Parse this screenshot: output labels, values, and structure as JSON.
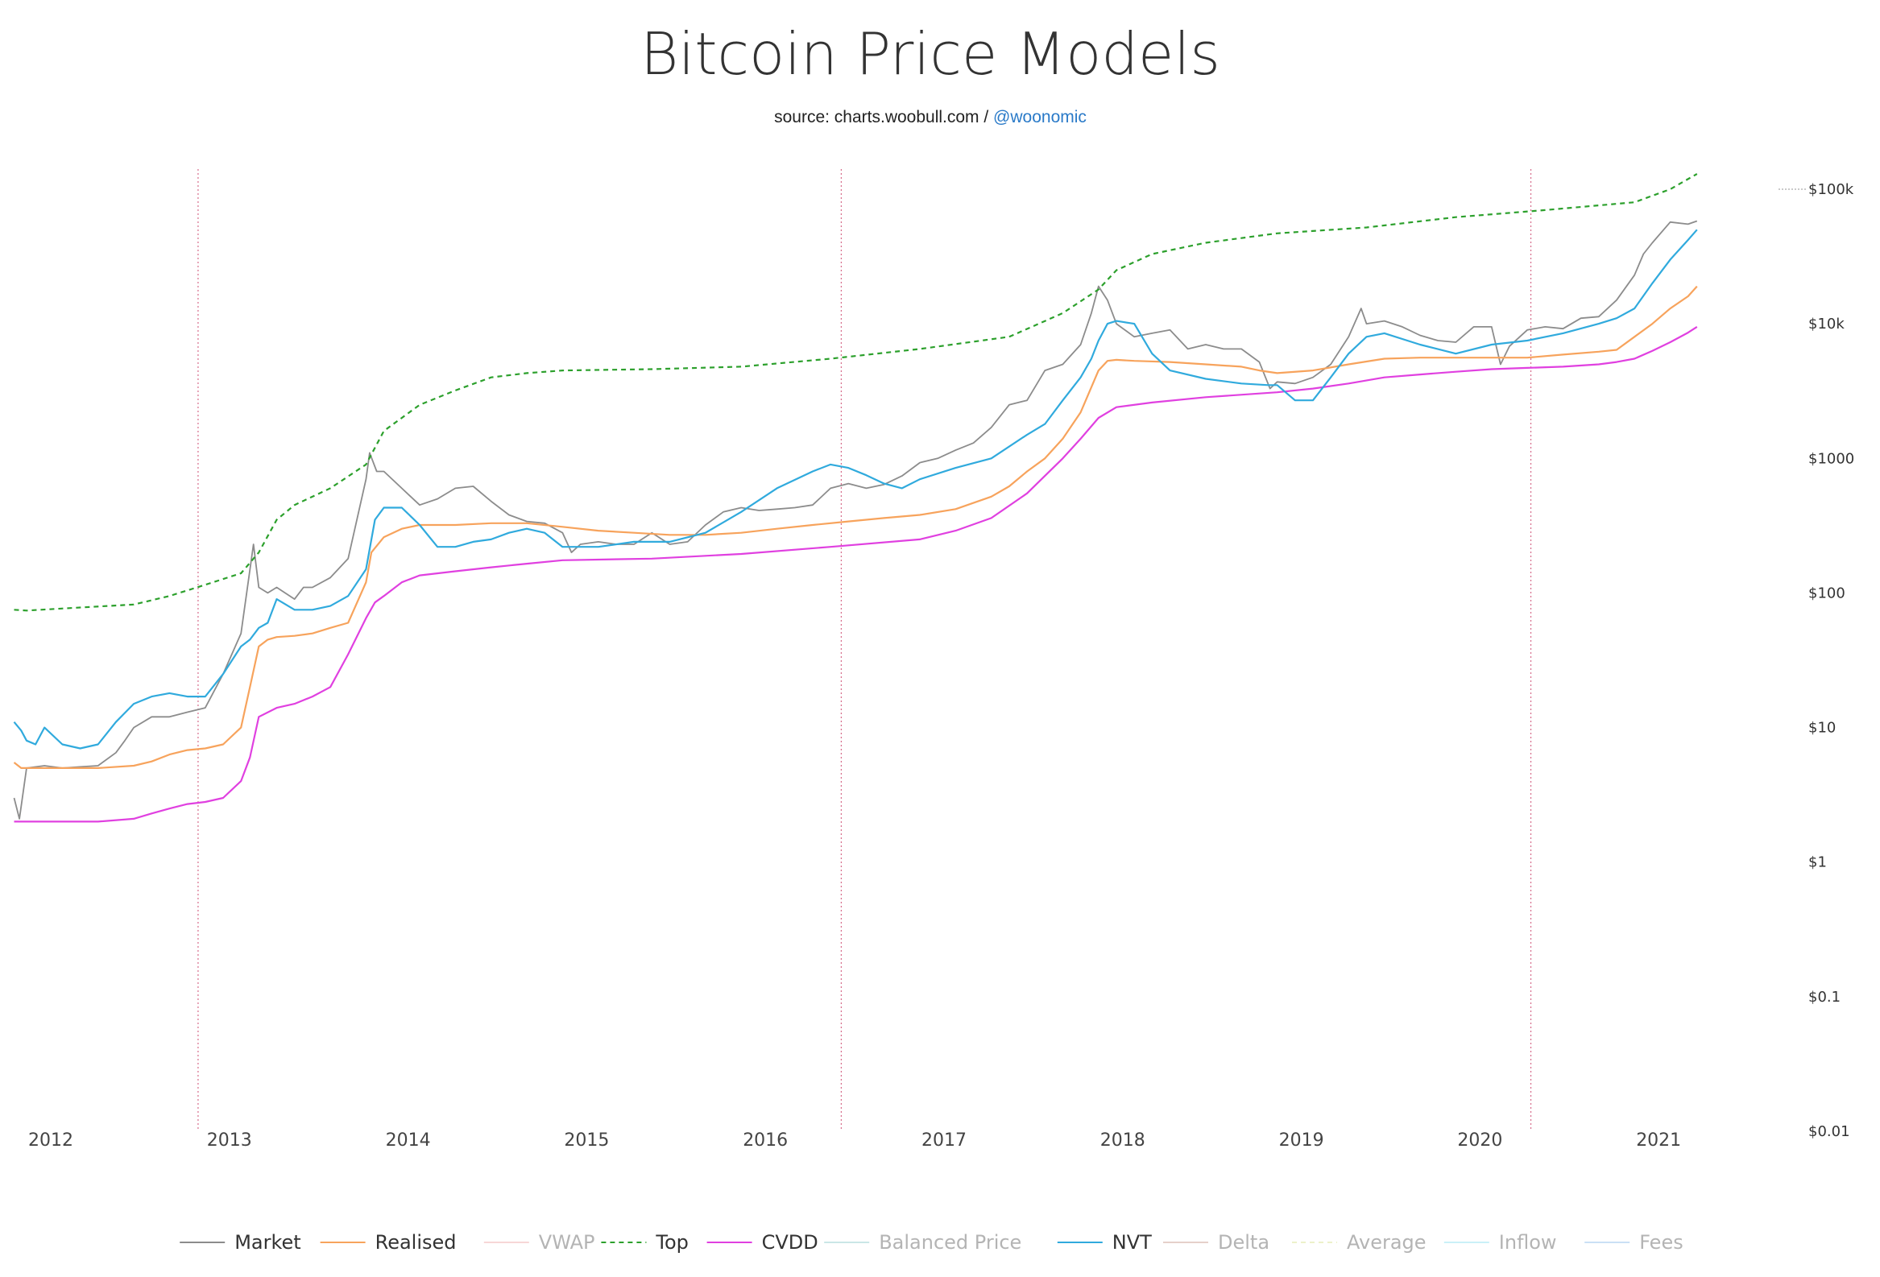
{
  "title": "Bitcoin Price Models",
  "subtitle": {
    "source": "source: charts.woobull.com / ",
    "handle": "@woonomic"
  },
  "chart_data": {
    "type": "line",
    "title": "Bitcoin Price Models",
    "yscale": "log",
    "ylim": [
      0.01,
      100000
    ],
    "xlim": [
      2011.92,
      2021.45
    ],
    "x_tick_labels": [
      "2012",
      "2013",
      "2014",
      "2015",
      "2016",
      "2017",
      "2018",
      "2019",
      "2020",
      "2021"
    ],
    "x_tick_values": [
      2012,
      2013,
      2014,
      2015,
      2016,
      2017,
      2018,
      2019,
      2020,
      2021
    ],
    "y_tick_labels": [
      "$0.01",
      "$0.1",
      "$1",
      "$10",
      "$100",
      "$1000",
      "$10k",
      "$100k"
    ],
    "y_tick_values": [
      0.01,
      0.1,
      1,
      10,
      100,
      1000,
      10000,
      100000
    ],
    "halving_lines": [
      2012.96,
      2016.56,
      2020.42
    ],
    "series": [
      {
        "name": "Market",
        "color": "#8c8c8c",
        "style": "solid",
        "visible": true,
        "x": [
          2011.93,
          2011.96,
          2012.0,
          2012.1,
          2012.2,
          2012.3,
          2012.4,
          2012.5,
          2012.55,
          2012.6,
          2012.7,
          2012.8,
          2012.9,
          2013.0,
          2013.1,
          2013.2,
          2013.27,
          2013.3,
          2013.35,
          2013.4,
          2013.5,
          2013.55,
          2013.6,
          2013.7,
          2013.8,
          2013.9,
          2013.92,
          2013.96,
          2014.0,
          2014.1,
          2014.2,
          2014.3,
          2014.4,
          2014.5,
          2014.6,
          2014.7,
          2014.8,
          2014.9,
          2015.0,
          2015.05,
          2015.1,
          2015.2,
          2015.3,
          2015.4,
          2015.5,
          2015.6,
          2015.7,
          2015.8,
          2015.9,
          2016.0,
          2016.1,
          2016.2,
          2016.3,
          2016.4,
          2016.5,
          2016.6,
          2016.7,
          2016.8,
          2016.9,
          2017.0,
          2017.1,
          2017.2,
          2017.3,
          2017.4,
          2017.5,
          2017.6,
          2017.7,
          2017.8,
          2017.9,
          2017.96,
          2018.0,
          2018.05,
          2018.1,
          2018.2,
          2018.3,
          2018.4,
          2018.5,
          2018.6,
          2018.7,
          2018.8,
          2018.9,
          2018.96,
          2019.0,
          2019.1,
          2019.2,
          2019.3,
          2019.4,
          2019.47,
          2019.5,
          2019.6,
          2019.7,
          2019.8,
          2019.9,
          2020.0,
          2020.1,
          2020.2,
          2020.25,
          2020.3,
          2020.4,
          2020.5,
          2020.6,
          2020.7,
          2020.8,
          2020.9,
          2021.0,
          2021.05,
          2021.1,
          2021.2,
          2021.3,
          2021.35
        ],
        "y": [
          3,
          2.1,
          5,
          5.2,
          5,
          5.1,
          5.2,
          6.5,
          8,
          10,
          12,
          12,
          13,
          14,
          25,
          50,
          230,
          110,
          100,
          110,
          90,
          110,
          110,
          130,
          180,
          700,
          1100,
          800,
          800,
          600,
          450,
          500,
          600,
          620,
          480,
          380,
          340,
          330,
          280,
          200,
          230,
          240,
          230,
          230,
          280,
          230,
          240,
          320,
          400,
          430,
          410,
          420,
          430,
          450,
          600,
          650,
          600,
          640,
          740,
          930,
          1000,
          1150,
          1300,
          1700,
          2500,
          2700,
          4500,
          5000,
          7000,
          12000,
          19000,
          15000,
          10000,
          8000,
          8500,
          9000,
          6500,
          7000,
          6500,
          6500,
          5200,
          3300,
          3700,
          3600,
          4000,
          5000,
          8000,
          13000,
          10000,
          10500,
          9500,
          8200,
          7500,
          7300,
          9500,
          9500,
          5000,
          6800,
          9000,
          9500,
          9200,
          11000,
          11300,
          15000,
          23000,
          33000,
          40000,
          57000,
          55000,
          58000
        ]
      },
      {
        "name": "Realised",
        "color": "#f7a35c",
        "style": "solid",
        "visible": true,
        "x": [
          2011.93,
          2011.97,
          2012.0,
          2012.2,
          2012.4,
          2012.6,
          2012.7,
          2012.8,
          2012.9,
          2013.0,
          2013.1,
          2013.2,
          2013.25,
          2013.3,
          2013.35,
          2013.4,
          2013.5,
          2013.6,
          2013.7,
          2013.8,
          2013.9,
          2013.93,
          2014.0,
          2014.1,
          2014.2,
          2014.4,
          2014.6,
          2014.8,
          2015.0,
          2015.2,
          2015.4,
          2015.6,
          2015.8,
          2016.0,
          2016.2,
          2016.4,
          2016.6,
          2016.8,
          2017.0,
          2017.2,
          2017.4,
          2017.5,
          2017.6,
          2017.7,
          2017.8,
          2017.9,
          2018.0,
          2018.05,
          2018.1,
          2018.2,
          2018.4,
          2018.6,
          2018.8,
          2018.9,
          2019.0,
          2019.2,
          2019.4,
          2019.6,
          2019.8,
          2020.0,
          2020.2,
          2020.4,
          2020.6,
          2020.8,
          2020.9,
          2021.0,
          2021.1,
          2021.2,
          2021.3,
          2021.35
        ],
        "y": [
          5.5,
          5,
          5,
          5,
          5,
          5.2,
          5.6,
          6.3,
          6.8,
          7,
          7.5,
          10,
          20,
          40,
          45,
          47,
          48,
          50,
          55,
          60,
          120,
          200,
          260,
          300,
          320,
          320,
          330,
          330,
          310,
          290,
          280,
          270,
          270,
          280,
          300,
          320,
          340,
          360,
          380,
          420,
          520,
          620,
          800,
          1000,
          1400,
          2200,
          4500,
          5300,
          5400,
          5300,
          5200,
          5000,
          4800,
          4500,
          4300,
          4500,
          5000,
          5500,
          5600,
          5600,
          5600,
          5600,
          5900,
          6200,
          6400,
          8000,
          10000,
          13000,
          16000,
          19000
        ]
      },
      {
        "name": "Top",
        "color": "#2ca02c",
        "style": "dashed",
        "visible": true,
        "x": [
          2011.93,
          2012.0,
          2012.3,
          2012.6,
          2012.8,
          2013.0,
          2013.2,
          2013.3,
          2013.4,
          2013.5,
          2013.7,
          2013.9,
          2014.0,
          2014.2,
          2014.4,
          2014.6,
          2014.8,
          2015.0,
          2015.5,
          2016.0,
          2016.5,
          2017.0,
          2017.5,
          2017.8,
          2018.0,
          2018.1,
          2018.3,
          2018.6,
          2019.0,
          2019.5,
          2020.0,
          2020.5,
          2021.0,
          2021.2,
          2021.35
        ],
        "y": [
          75,
          74,
          78,
          82,
          95,
          115,
          140,
          200,
          350,
          450,
          600,
          900,
          1600,
          2500,
          3200,
          4000,
          4300,
          4500,
          4600,
          4800,
          5500,
          6500,
          8000,
          12000,
          18000,
          25000,
          33000,
          40000,
          47000,
          52000,
          62000,
          70000,
          80000,
          100000,
          130000
        ]
      },
      {
        "name": "CVDD",
        "color": "#e040e0",
        "style": "solid",
        "visible": true,
        "x": [
          2011.93,
          2012.0,
          2012.2,
          2012.4,
          2012.6,
          2012.7,
          2012.8,
          2012.9,
          2013.0,
          2013.1,
          2013.2,
          2013.25,
          2013.3,
          2013.4,
          2013.5,
          2013.6,
          2013.7,
          2013.8,
          2013.9,
          2013.95,
          2014.0,
          2014.1,
          2014.2,
          2014.4,
          2014.6,
          2014.8,
          2015.0,
          2015.5,
          2016.0,
          2016.5,
          2017.0,
          2017.2,
          2017.4,
          2017.6,
          2017.8,
          2017.9,
          2018.0,
          2018.1,
          2018.3,
          2018.6,
          2019.0,
          2019.2,
          2019.4,
          2019.6,
          2019.8,
          2020.0,
          2020.2,
          2020.4,
          2020.6,
          2020.8,
          2020.9,
          2021.0,
          2021.1,
          2021.2,
          2021.3,
          2021.35
        ],
        "y": [
          2,
          2,
          2,
          2,
          2.1,
          2.3,
          2.5,
          2.7,
          2.8,
          3,
          4,
          6,
          12,
          14,
          15,
          17,
          20,
          35,
          65,
          85,
          95,
          120,
          135,
          145,
          155,
          165,
          175,
          180,
          195,
          220,
          250,
          290,
          360,
          550,
          1000,
          1400,
          2000,
          2400,
          2600,
          2850,
          3100,
          3300,
          3600,
          4000,
          4200,
          4400,
          4600,
          4700,
          4800,
          5000,
          5200,
          5500,
          6300,
          7300,
          8600,
          9500
        ]
      },
      {
        "name": "NVT",
        "color": "#30aadd",
        "style": "solid",
        "visible": true,
        "x": [
          2011.93,
          2011.97,
          2012.0,
          2012.05,
          2012.1,
          2012.2,
          2012.3,
          2012.4,
          2012.5,
          2012.6,
          2012.7,
          2012.8,
          2012.9,
          2013.0,
          2013.1,
          2013.2,
          2013.25,
          2013.3,
          2013.35,
          2013.4,
          2013.5,
          2013.6,
          2013.7,
          2013.8,
          2013.9,
          2013.95,
          2014.0,
          2014.1,
          2014.2,
          2014.3,
          2014.4,
          2014.5,
          2014.6,
          2014.7,
          2014.8,
          2014.9,
          2015.0,
          2015.2,
          2015.4,
          2015.6,
          2015.8,
          2016.0,
          2016.2,
          2016.4,
          2016.5,
          2016.6,
          2016.7,
          2016.8,
          2016.9,
          2017.0,
          2017.2,
          2017.4,
          2017.6,
          2017.7,
          2017.8,
          2017.9,
          2017.96,
          2018.0,
          2018.05,
          2018.1,
          2018.2,
          2018.3,
          2018.4,
          2018.6,
          2018.8,
          2018.95,
          2019.0,
          2019.1,
          2019.2,
          2019.3,
          2019.4,
          2019.5,
          2019.6,
          2019.8,
          2020.0,
          2020.2,
          2020.4,
          2020.6,
          2020.8,
          2020.9,
          2021.0,
          2021.1,
          2021.2,
          2021.3,
          2021.35
        ],
        "y": [
          11,
          9.5,
          8,
          7.5,
          10,
          7.5,
          7,
          7.5,
          11,
          15,
          17,
          18,
          17,
          17,
          25,
          40,
          45,
          55,
          60,
          90,
          75,
          75,
          80,
          95,
          150,
          350,
          430,
          430,
          320,
          220,
          220,
          240,
          250,
          280,
          300,
          280,
          220,
          220,
          240,
          240,
          280,
          400,
          600,
          800,
          900,
          850,
          750,
          650,
          600,
          700,
          850,
          1000,
          1500,
          1800,
          2700,
          4000,
          5500,
          7500,
          10000,
          10500,
          10000,
          6000,
          4500,
          3900,
          3600,
          3500,
          3500,
          2700,
          2700,
          4000,
          6000,
          8000,
          8500,
          7000,
          6000,
          7000,
          7500,
          8500,
          10000,
          11000,
          13000,
          20000,
          30000,
          42000,
          50000
        ]
      }
    ],
    "legend": [
      {
        "name": "Market",
        "color": "#8c8c8c",
        "style": "solid",
        "visible": true
      },
      {
        "name": "Realised",
        "color": "#f7a35c",
        "style": "solid",
        "visible": true
      },
      {
        "name": "VWAP",
        "color": "#f2b7b7",
        "style": "solid",
        "visible": false
      },
      {
        "name": "Top",
        "color": "#2ca02c",
        "style": "dashed",
        "visible": true
      },
      {
        "name": "CVDD",
        "color": "#e040e0",
        "style": "solid",
        "visible": true
      },
      {
        "name": "Balanced Price",
        "color": "#9fd3d3",
        "style": "solid",
        "visible": false
      },
      {
        "name": "NVT",
        "color": "#30aadd",
        "style": "solid",
        "visible": true
      },
      {
        "name": "Delta",
        "color": "#d0aaa0",
        "style": "solid",
        "visible": false
      },
      {
        "name": "Average",
        "color": "#e0e6a0",
        "style": "dashed",
        "visible": false
      },
      {
        "name": "Inflow",
        "color": "#a0e4f4",
        "style": "solid",
        "visible": false
      },
      {
        "name": "Fees",
        "color": "#a0c8ee",
        "style": "solid",
        "visible": false
      }
    ]
  }
}
